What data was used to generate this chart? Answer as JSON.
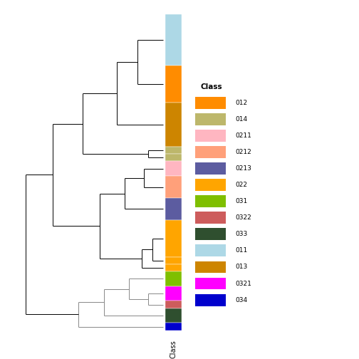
{
  "color_bar_segments": [
    {
      "class": "011",
      "color": "#ADD8E6",
      "size": 7
    },
    {
      "class": "012",
      "color": "#FF8C00",
      "size": 5
    },
    {
      "class": "013",
      "color": "#CD8500",
      "size": 6
    },
    {
      "class": "014a",
      "color": "#BDB76B",
      "size": 1
    },
    {
      "class": "014b",
      "color": "#BDB76B",
      "size": 1
    },
    {
      "class": "0211",
      "color": "#FFB6C1",
      "size": 2
    },
    {
      "class": "0212",
      "color": "#FFA07A",
      "size": 3
    },
    {
      "class": "0213",
      "color": "#5C5CA0",
      "size": 3
    },
    {
      "class": "022a",
      "color": "#FFA500",
      "size": 5
    },
    {
      "class": "022b",
      "color": "#FFA500",
      "size": 1
    },
    {
      "class": "022c",
      "color": "#FFA500",
      "size": 1
    },
    {
      "class": "031",
      "color": "#7FBF00",
      "size": 2
    },
    {
      "class": "0321",
      "color": "#FF00FF",
      "size": 2
    },
    {
      "class": "0322",
      "color": "#CD5C5C",
      "size": 1
    },
    {
      "class": "033",
      "color": "#2F4F2F",
      "size": 2
    },
    {
      "class": "034",
      "color": "#0000CD",
      "size": 1
    }
  ],
  "legend_classes": [
    {
      "label": "012",
      "color": "#FF8C00"
    },
    {
      "label": "014",
      "color": "#BDB76B"
    },
    {
      "label": "0211",
      "color": "#FFB6C1"
    },
    {
      "label": "0212",
      "color": "#FFA07A"
    },
    {
      "label": "0213",
      "color": "#5C5CA0"
    },
    {
      "label": "022",
      "color": "#FFA500"
    },
    {
      "label": "031",
      "color": "#7FBF00"
    },
    {
      "label": "0322",
      "color": "#CD5C5C"
    },
    {
      "label": "033",
      "color": "#2F4F2F"
    },
    {
      "label": "011",
      "color": "#ADD8E6"
    },
    {
      "label": "013",
      "color": "#CD8500"
    },
    {
      "label": "0321",
      "color": "#FF00FF"
    },
    {
      "label": "034",
      "color": "#0000CD"
    }
  ],
  "fig_width": 5.04,
  "fig_height": 5.04,
  "dpi": 100
}
